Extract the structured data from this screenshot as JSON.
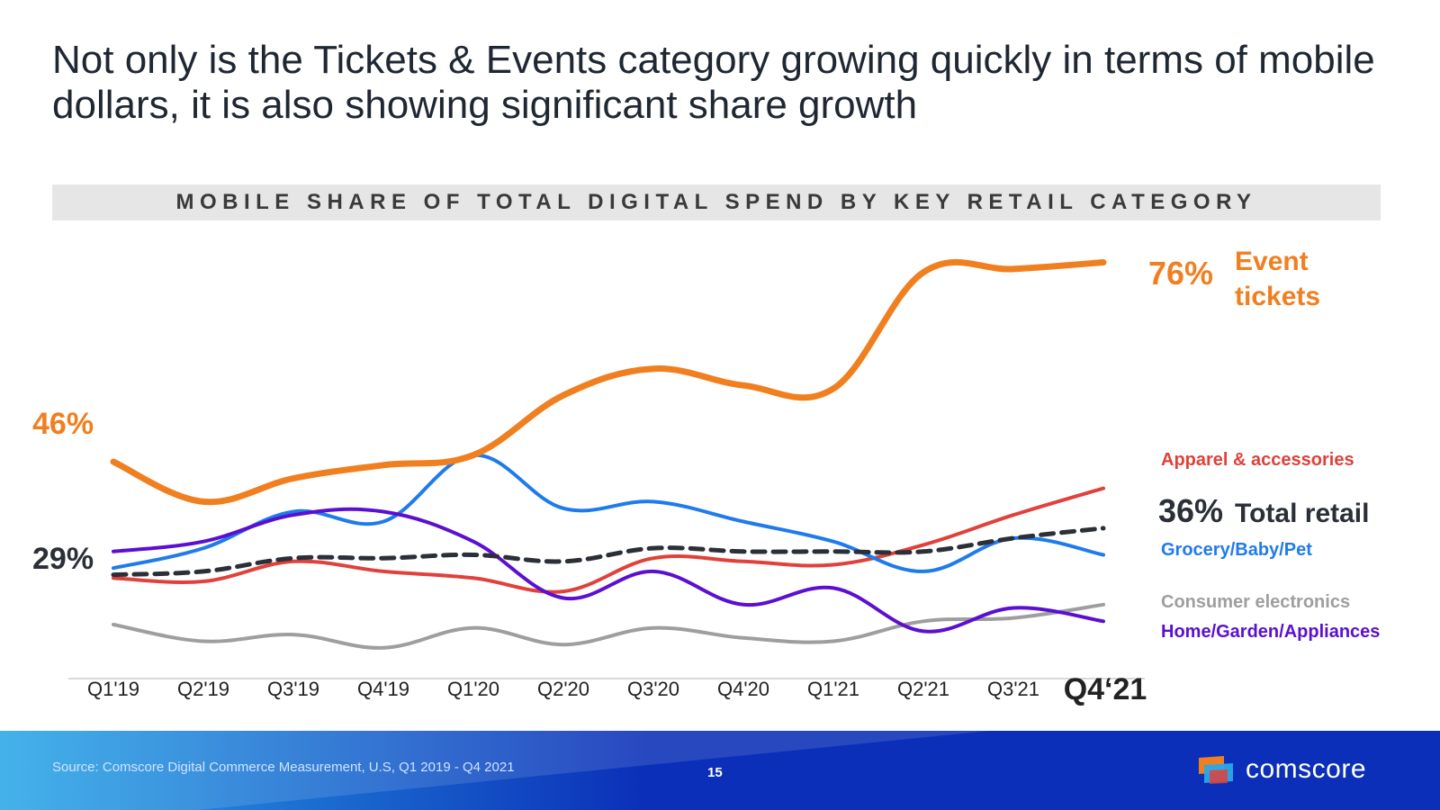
{
  "headline": "Not only is the Tickets & Events category growing quickly in terms of mobile dollars, it is also showing significant share growth",
  "footer": {
    "source": "Source: Comscore Digital Commerce Measurement, U.S, Q1 2019 - Q4 2021",
    "page_number": "15",
    "brand": "comscore"
  },
  "colors": {
    "event_tickets": "#F07F20",
    "apparel": "#E0413A",
    "total_retail": "#2B2F38",
    "grocery": "#1F7BEB",
    "consumer_electronics": "#9E9E9E",
    "home_garden": "#5B0FD0",
    "footer_dark": "#0B2FB8",
    "footer_light": "#2AA8E8"
  },
  "chart_data": {
    "type": "line",
    "title": "MOBILE SHARE OF TOTAL DIGITAL SPEND BY KEY RETAIL CATEGORY",
    "xlabel": "",
    "ylabel": "",
    "ylim": [
      15,
      80
    ],
    "categories": [
      "Q1'19",
      "Q2'19",
      "Q3'19",
      "Q4'19",
      "Q1'20",
      "Q2'20",
      "Q3'20",
      "Q4'20",
      "Q1'21",
      "Q2'21",
      "Q3'21",
      "Q4‘21"
    ],
    "series": [
      {
        "name": "Event tickets",
        "color_key": "event_tickets",
        "stroke": 7,
        "dash": "",
        "values": [
          46,
          40,
          43.5,
          45.5,
          47,
          56,
          60,
          57.5,
          57,
          74.5,
          75,
          76
        ],
        "label": "Event tickets",
        "start_label": "46%",
        "end_label": "76%"
      },
      {
        "name": "Apparel & accessories",
        "color_key": "apparel",
        "stroke": 4,
        "dash": "",
        "values": [
          28.5,
          28,
          31,
          29.5,
          28.5,
          26.5,
          31.5,
          31,
          30.5,
          33.5,
          38,
          42
        ],
        "label": "Apparel & accessories"
      },
      {
        "name": "Total retail",
        "color_key": "total_retail",
        "stroke": 5,
        "dash": "14 9",
        "values": [
          29,
          29.5,
          31.5,
          31.5,
          32,
          31,
          33,
          32.5,
          32.5,
          32.5,
          34.5,
          36
        ],
        "label": "Total retail",
        "start_label": "29%",
        "end_label": "36%"
      },
      {
        "name": "Grocery/Baby/Pet",
        "color_key": "grocery",
        "stroke": 4,
        "dash": "",
        "values": [
          30,
          33,
          38.5,
          37,
          47,
          39,
          40,
          37,
          34,
          29.5,
          34.5,
          32
        ],
        "label": "Grocery/Baby/Pet"
      },
      {
        "name": "Consumer electronics",
        "color_key": "consumer_electronics",
        "stroke": 4,
        "dash": "",
        "values": [
          21.5,
          19,
          20,
          18,
          21,
          18.5,
          21,
          19.5,
          19,
          22,
          22.5,
          24.5
        ],
        "label": "Consumer electronics"
      },
      {
        "name": "Home/Garden/Appliances",
        "color_key": "home_garden",
        "stroke": 4,
        "dash": "",
        "values": [
          32.5,
          34,
          38,
          38.5,
          34,
          25.5,
          29.5,
          24.5,
          27,
          20.5,
          24,
          22
        ],
        "label": "Home/Garden/Appliances"
      }
    ]
  }
}
